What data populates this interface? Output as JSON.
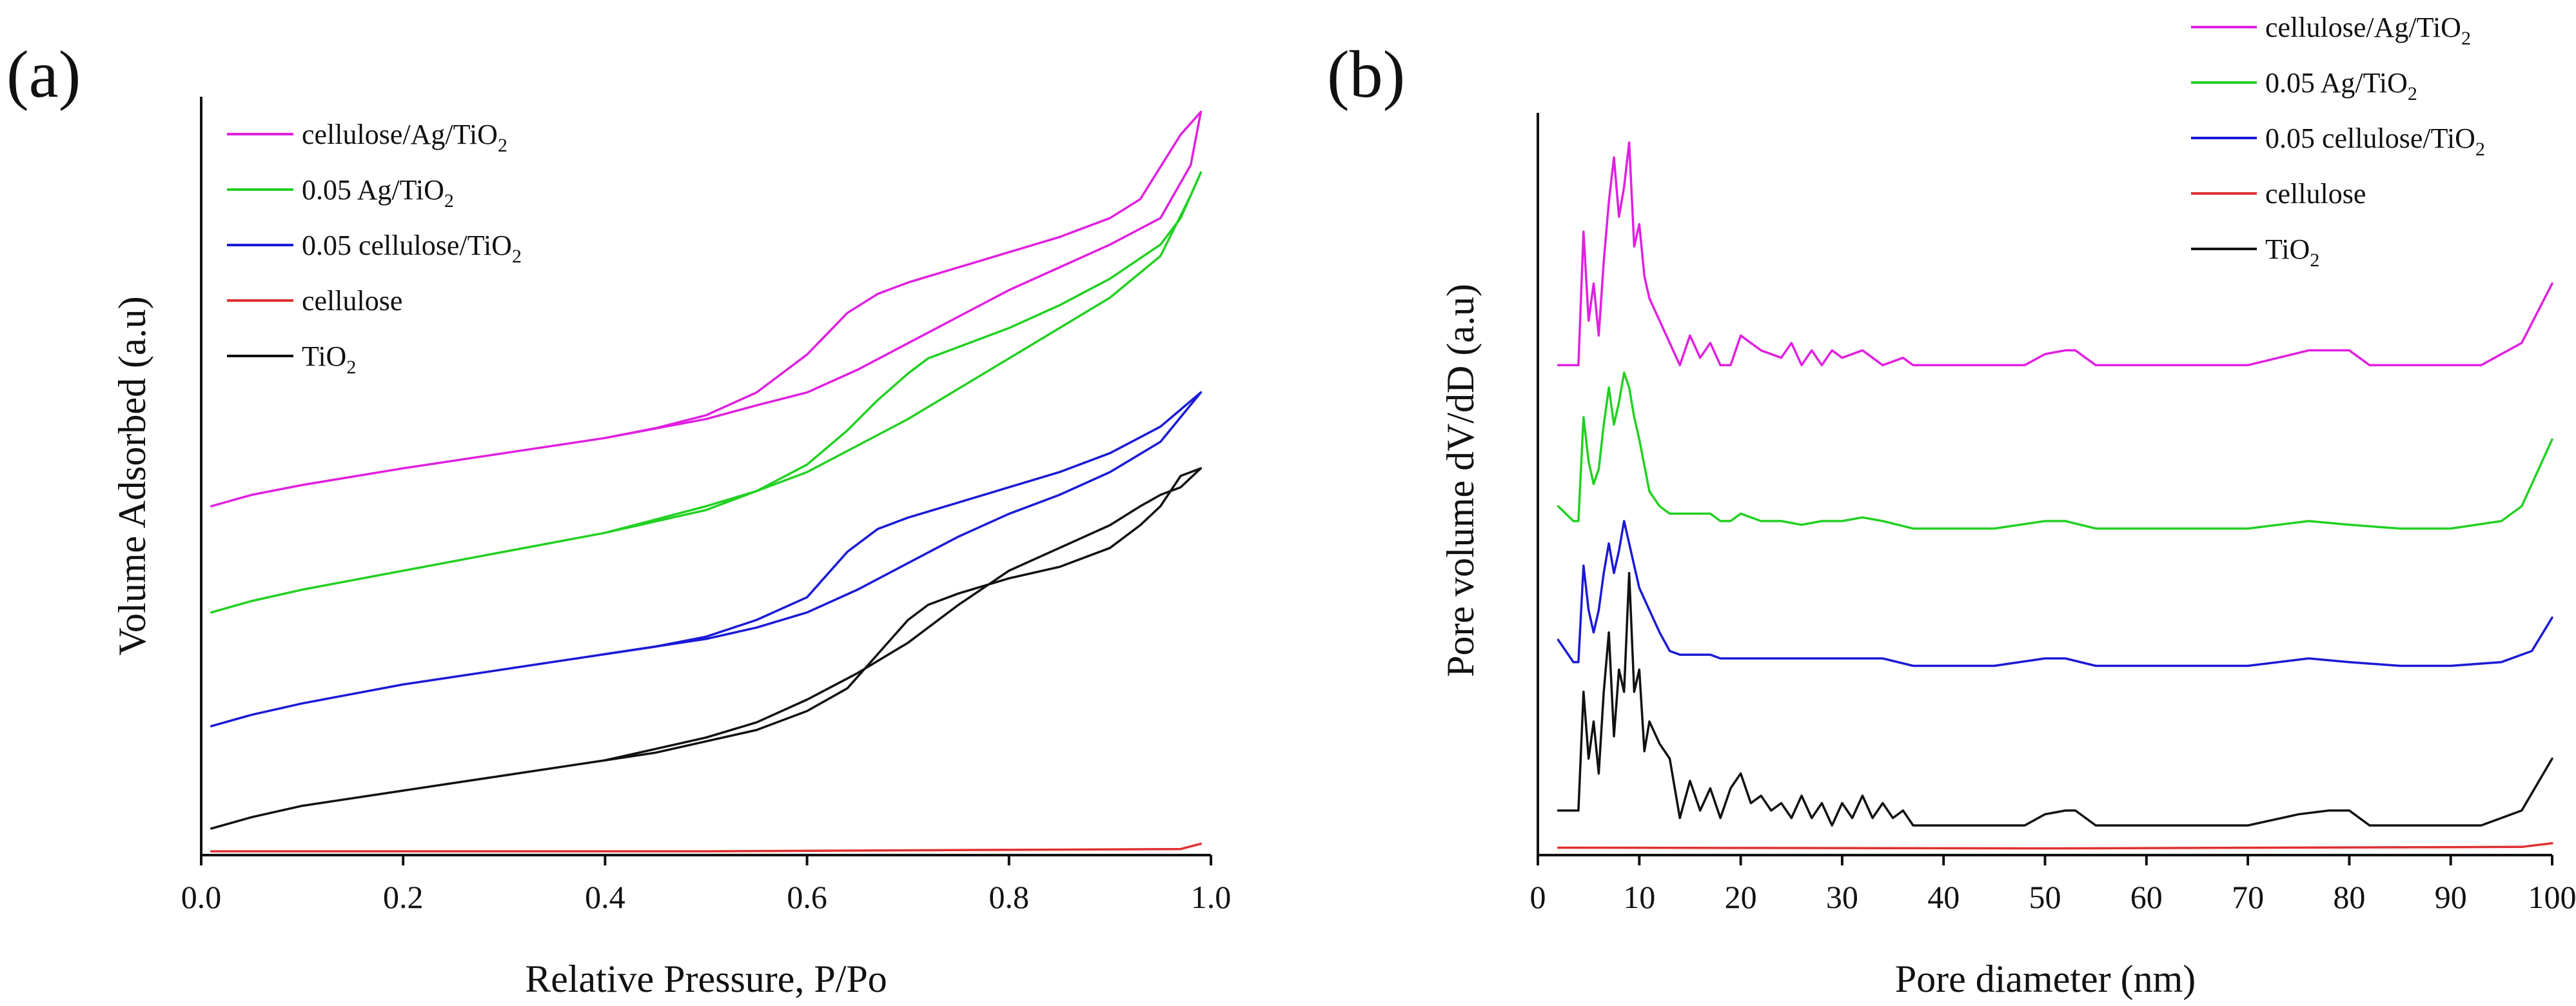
{
  "figure": {
    "panel_labels": [
      "(a)",
      "(b)"
    ]
  },
  "colors": {
    "cellulose_ag_tio2": "#e020e0",
    "ag_tio2": "#22d022",
    "cellulose_tio2": "#1a1ad6",
    "cellulose": "#e03030",
    "tio2": "#111111"
  },
  "chart_data": [
    {
      "type": "line",
      "panel": "(a)",
      "title": "",
      "xlabel": "Relative Pressure, P/Po",
      "ylabel": "Volume Adsorbed (a.u)",
      "xlim": [
        0.0,
        1.0
      ],
      "ylim": [
        0,
        100
      ],
      "xticks": [
        "0.0",
        "0.2",
        "0.4",
        "0.6",
        "0.8",
        "1.0"
      ],
      "yticks": [],
      "grid": false,
      "legend_position": "top-left",
      "legend": [
        {
          "key": "cellulose_ag_tio2",
          "base": "cellulose/Ag/TiO",
          "sub": "2"
        },
        {
          "key": "ag_tio2",
          "base": "0.05 Ag/TiO",
          "sub": "2"
        },
        {
          "key": "cellulose_tio2",
          "base": "0.05 cellulose/TiO",
          "sub": "2"
        },
        {
          "key": "cellulose",
          "base": "cellulose",
          "sub": ""
        },
        {
          "key": "tio2",
          "base": "TiO",
          "sub": "2"
        }
      ],
      "series": [
        {
          "name": "cellulose/Ag/TiO2",
          "key": "cellulose_ag_tio2",
          "adsorption": {
            "x": [
              0.01,
              0.05,
              0.1,
              0.2,
              0.3,
              0.4,
              0.5,
              0.55,
              0.6,
              0.65,
              0.7,
              0.75,
              0.8,
              0.85,
              0.9,
              0.95,
              0.98,
              0.99
            ],
            "y": [
              46,
              47.5,
              48.8,
              51,
              53,
              55,
              57.5,
              59.3,
              61,
              64,
              67.5,
              71,
              74.5,
              77.5,
              80.5,
              84,
              91,
              98
            ]
          },
          "desorption": {
            "x": [
              0.99,
              0.97,
              0.93,
              0.9,
              0.85,
              0.8,
              0.75,
              0.7,
              0.67,
              0.64,
              0.6,
              0.55,
              0.5,
              0.45,
              0.4
            ],
            "y": [
              98,
              95,
              86.5,
              84,
              81.5,
              79.5,
              77.5,
              75.5,
              74,
              71.5,
              66,
              61,
              58,
              56.3,
              55
            ]
          }
        },
        {
          "name": "0.05 Ag/TiO2",
          "key": "ag_tio2",
          "adsorption": {
            "x": [
              0.01,
              0.05,
              0.1,
              0.2,
              0.3,
              0.4,
              0.5,
              0.55,
              0.6,
              0.65,
              0.7,
              0.75,
              0.8,
              0.85,
              0.9,
              0.95,
              0.98,
              0.99
            ],
            "y": [
              32,
              33.5,
              35,
              37.5,
              40,
              42.5,
              46,
              48,
              50.5,
              54,
              57.5,
              61.5,
              65.5,
              69.5,
              73.5,
              79,
              87,
              90
            ]
          },
          "desorption": {
            "x": [
              0.99,
              0.97,
              0.95,
              0.9,
              0.85,
              0.8,
              0.75,
              0.72,
              0.7,
              0.67,
              0.64,
              0.6,
              0.55,
              0.5,
              0.45,
              0.4
            ],
            "y": [
              90,
              84,
              80.5,
              76,
              72.5,
              69.5,
              67,
              65.5,
              63.5,
              60,
              56,
              51.5,
              48,
              45.5,
              44,
              42.5
            ]
          }
        },
        {
          "name": "0.05 cellulose/TiO2",
          "key": "cellulose_tio2",
          "adsorption": {
            "x": [
              0.01,
              0.05,
              0.1,
              0.2,
              0.3,
              0.4,
              0.5,
              0.55,
              0.6,
              0.65,
              0.7,
              0.75,
              0.8,
              0.85,
              0.9,
              0.95,
              0.99
            ],
            "y": [
              17,
              18.5,
              20,
              22.5,
              24.5,
              26.5,
              28.5,
              30,
              32,
              35,
              38.5,
              42,
              45,
              47.5,
              50.5,
              54.5,
              61
            ]
          },
          "desorption": {
            "x": [
              0.99,
              0.95,
              0.9,
              0.85,
              0.8,
              0.75,
              0.7,
              0.67,
              0.64,
              0.6,
              0.55,
              0.5,
              0.45,
              0.4
            ],
            "y": [
              61,
              56.5,
              53,
              50.5,
              48.5,
              46.5,
              44.5,
              43,
              40,
              34,
              31,
              28.8,
              27.5,
              26.5
            ]
          }
        },
        {
          "name": "cellulose",
          "key": "cellulose",
          "adsorption": {
            "x": [
              0.01,
              0.5,
              0.97,
              0.99
            ],
            "y": [
              0.5,
              0.5,
              0.8,
              1.5
            ]
          },
          "desorption": {
            "x": [],
            "y": []
          }
        },
        {
          "name": "TiO2",
          "key": "tio2",
          "adsorption": {
            "x": [
              0.01,
              0.05,
              0.1,
              0.2,
              0.3,
              0.4,
              0.5,
              0.55,
              0.6,
              0.65,
              0.7,
              0.75,
              0.8,
              0.85,
              0.9,
              0.93,
              0.95,
              0.97,
              0.99
            ],
            "y": [
              3.5,
              5,
              6.5,
              8.5,
              10.5,
              12.5,
              15.5,
              17.5,
              20.5,
              24,
              28,
              33,
              37.5,
              40.5,
              43.5,
              46,
              47.5,
              48.5,
              51
            ]
          },
          "desorption": {
            "x": [
              0.99,
              0.97,
              0.95,
              0.93,
              0.9,
              0.85,
              0.8,
              0.75,
              0.72,
              0.7,
              0.67,
              0.64,
              0.6,
              0.55,
              0.5,
              0.45,
              0.4
            ],
            "y": [
              51,
              50,
              46,
              43.5,
              40.5,
              38,
              36.5,
              34.5,
              33,
              31,
              26.5,
              22,
              19,
              16.5,
              15,
              13.5,
              12.5
            ]
          }
        }
      ]
    },
    {
      "type": "line",
      "panel": "(b)",
      "title": "",
      "xlabel": "Pore diameter (nm)",
      "ylabel": "Pore volume dV/dD (a.u)",
      "xlim": [
        0,
        100
      ],
      "ylim": [
        0,
        100
      ],
      "xticks": [
        "0",
        "10",
        "20",
        "30",
        "40",
        "50",
        "60",
        "70",
        "80",
        "90",
        "100"
      ],
      "yticks": [],
      "grid": false,
      "legend_position": "top-right",
      "legend": [
        {
          "key": "cellulose_ag_tio2",
          "base": "cellulose/Ag/TiO",
          "sub": "2"
        },
        {
          "key": "ag_tio2",
          "base": "0.05 Ag/TiO",
          "sub": "2"
        },
        {
          "key": "cellulose_tio2",
          "base": "0.05 cellulose/TiO",
          "sub": "2"
        },
        {
          "key": "cellulose",
          "base": "cellulose",
          "sub": ""
        },
        {
          "key": "tio2",
          "base": "TiO",
          "sub": "2"
        }
      ],
      "series": [
        {
          "name": "cellulose/Ag/TiO2",
          "key": "cellulose_ag_tio2",
          "x": [
            2,
            3.5,
            4,
            4.5,
            5,
            5.5,
            6,
            6.5,
            7,
            7.5,
            8,
            8.5,
            9,
            9.5,
            10,
            10.5,
            11,
            12,
            13,
            14,
            15,
            16,
            17,
            18,
            19,
            20,
            21,
            22,
            24,
            25,
            26,
            27,
            28,
            29,
            30,
            32,
            34,
            36,
            37,
            48,
            50,
            52,
            53,
            55,
            70,
            76,
            78,
            80,
            82,
            93,
            97,
            100
          ],
          "y": [
            66,
            66,
            66,
            84,
            72,
            77,
            70,
            80,
            88,
            94,
            86,
            90,
            96,
            82,
            85,
            78,
            75,
            72,
            69,
            66,
            70,
            67,
            69,
            66,
            66,
            70,
            69,
            68,
            67,
            69,
            66,
            68,
            66,
            68,
            67,
            68,
            66,
            67,
            66,
            66,
            67.5,
            68,
            68,
            66,
            66,
            68,
            68,
            68,
            66,
            66,
            69,
            77
          ]
        },
        {
          "name": "0.05 Ag/TiO2",
          "key": "ag_tio2",
          "x": [
            2,
            3.5,
            4,
            4.5,
            5,
            5.5,
            6,
            6.5,
            7,
            7.5,
            8,
            8.5,
            9,
            9.5,
            10,
            11,
            12,
            13,
            14,
            15,
            16,
            17,
            18,
            19,
            20,
            22,
            24,
            26,
            28,
            30,
            32,
            34,
            37,
            40,
            45,
            50,
            52,
            55,
            60,
            70,
            76,
            80,
            85,
            90,
            95,
            97,
            100
          ],
          "y": [
            47,
            45,
            45,
            59,
            53,
            50,
            52,
            58,
            63,
            58,
            61,
            65,
            63,
            59,
            56,
            49,
            47,
            46,
            46,
            46,
            46,
            46,
            45,
            45,
            46,
            45,
            45,
            44.5,
            45,
            45,
            45.5,
            45,
            44,
            44,
            44,
            45,
            45,
            44,
            44,
            44,
            45,
            44.5,
            44,
            44,
            45,
            47,
            56
          ]
        },
        {
          "name": "0.05 cellulose/TiO2",
          "key": "cellulose_tio2",
          "x": [
            2,
            3.5,
            4,
            4.5,
            5,
            5.5,
            6,
            6.5,
            7,
            7.5,
            8,
            8.5,
            9,
            9.5,
            10,
            11,
            12,
            13,
            14,
            15,
            16,
            17,
            18,
            19,
            20,
            22,
            24,
            26,
            28,
            30,
            32,
            34,
            37,
            40,
            45,
            50,
            52,
            55,
            60,
            70,
            76,
            80,
            85,
            90,
            95,
            98,
            100
          ],
          "y": [
            29,
            26,
            26,
            39,
            33,
            30,
            33,
            38,
            42,
            38,
            41,
            45,
            42,
            39,
            36,
            33,
            30,
            27.5,
            27,
            27,
            27,
            27,
            26.5,
            26.5,
            26.5,
            26.5,
            26.5,
            26.5,
            26.5,
            26.5,
            26.5,
            26.5,
            25.5,
            25.5,
            25.5,
            26.5,
            26.5,
            25.5,
            25.5,
            25.5,
            26.5,
            26,
            25.5,
            25.5,
            26,
            27.5,
            32
          ]
        },
        {
          "name": "cellulose",
          "key": "cellulose",
          "x": [
            2,
            50,
            97,
            100
          ],
          "y": [
            1,
            0.9,
            1.1,
            1.6
          ]
        },
        {
          "name": "TiO2",
          "key": "tio2",
          "x": [
            2,
            3.5,
            4,
            4.5,
            5,
            5.5,
            6,
            6.5,
            7,
            7.5,
            8,
            8.5,
            9,
            9.5,
            10,
            10.5,
            11,
            12,
            13,
            14,
            15,
            16,
            17,
            18,
            19,
            20,
            21,
            22,
            23,
            24,
            25,
            26,
            27,
            28,
            29,
            30,
            31,
            32,
            33,
            34,
            35,
            36,
            37,
            48,
            50,
            52,
            53,
            55,
            70,
            75,
            78,
            80,
            82,
            93,
            97,
            100
          ],
          "y": [
            6,
            6,
            6,
            22,
            13,
            18,
            11,
            22,
            30,
            16,
            25,
            22,
            38,
            22,
            25,
            14,
            18,
            15,
            13,
            5,
            10,
            6,
            9,
            5,
            9,
            11,
            7,
            8,
            6,
            7,
            5,
            8,
            5,
            7,
            4,
            7,
            5,
            8,
            5,
            7,
            5,
            6,
            4,
            4,
            5.5,
            6,
            6,
            4,
            4,
            5.5,
            6,
            6,
            4,
            4,
            6,
            13
          ]
        }
      ]
    }
  ]
}
